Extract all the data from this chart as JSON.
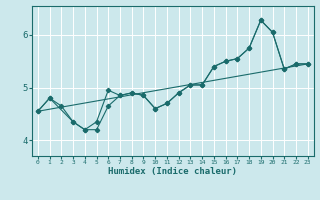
{
  "title": "",
  "xlabel": "Humidex (Indice chaleur)",
  "background_color": "#cce8ec",
  "line_color": "#1a6b6b",
  "grid_color": "#ffffff",
  "xlim": [
    -0.5,
    23.5
  ],
  "ylim": [
    3.7,
    6.55
  ],
  "yticks": [
    4,
    5,
    6
  ],
  "xticks": [
    0,
    1,
    2,
    3,
    4,
    5,
    6,
    7,
    8,
    9,
    10,
    11,
    12,
    13,
    14,
    15,
    16,
    17,
    18,
    19,
    20,
    21,
    22,
    23
  ],
  "series1_x": [
    0,
    1,
    2,
    3,
    4,
    5,
    6,
    7,
    8,
    9,
    10,
    11,
    12,
    13,
    14,
    15,
    16,
    17,
    18,
    19,
    20,
    21,
    22,
    23
  ],
  "series1_y": [
    4.55,
    4.8,
    4.65,
    4.35,
    4.2,
    4.2,
    4.65,
    4.85,
    4.9,
    4.85,
    4.6,
    4.7,
    4.9,
    5.05,
    5.05,
    5.4,
    5.5,
    5.55,
    5.75,
    6.28,
    6.05,
    5.35,
    5.45,
    5.45
  ],
  "series2_x": [
    0,
    1,
    3,
    4,
    5,
    6,
    7,
    8,
    9,
    10,
    11,
    12,
    13,
    14,
    15,
    16,
    17,
    18,
    19,
    20,
    21,
    22,
    23
  ],
  "series2_y": [
    4.55,
    4.8,
    4.35,
    4.2,
    4.35,
    4.95,
    4.85,
    4.9,
    4.85,
    4.6,
    4.7,
    4.9,
    5.05,
    5.05,
    5.4,
    5.5,
    5.55,
    5.75,
    6.28,
    6.05,
    5.35,
    5.45,
    5.45
  ],
  "series3_x": [
    0,
    23
  ],
  "series3_y": [
    4.55,
    5.45
  ]
}
